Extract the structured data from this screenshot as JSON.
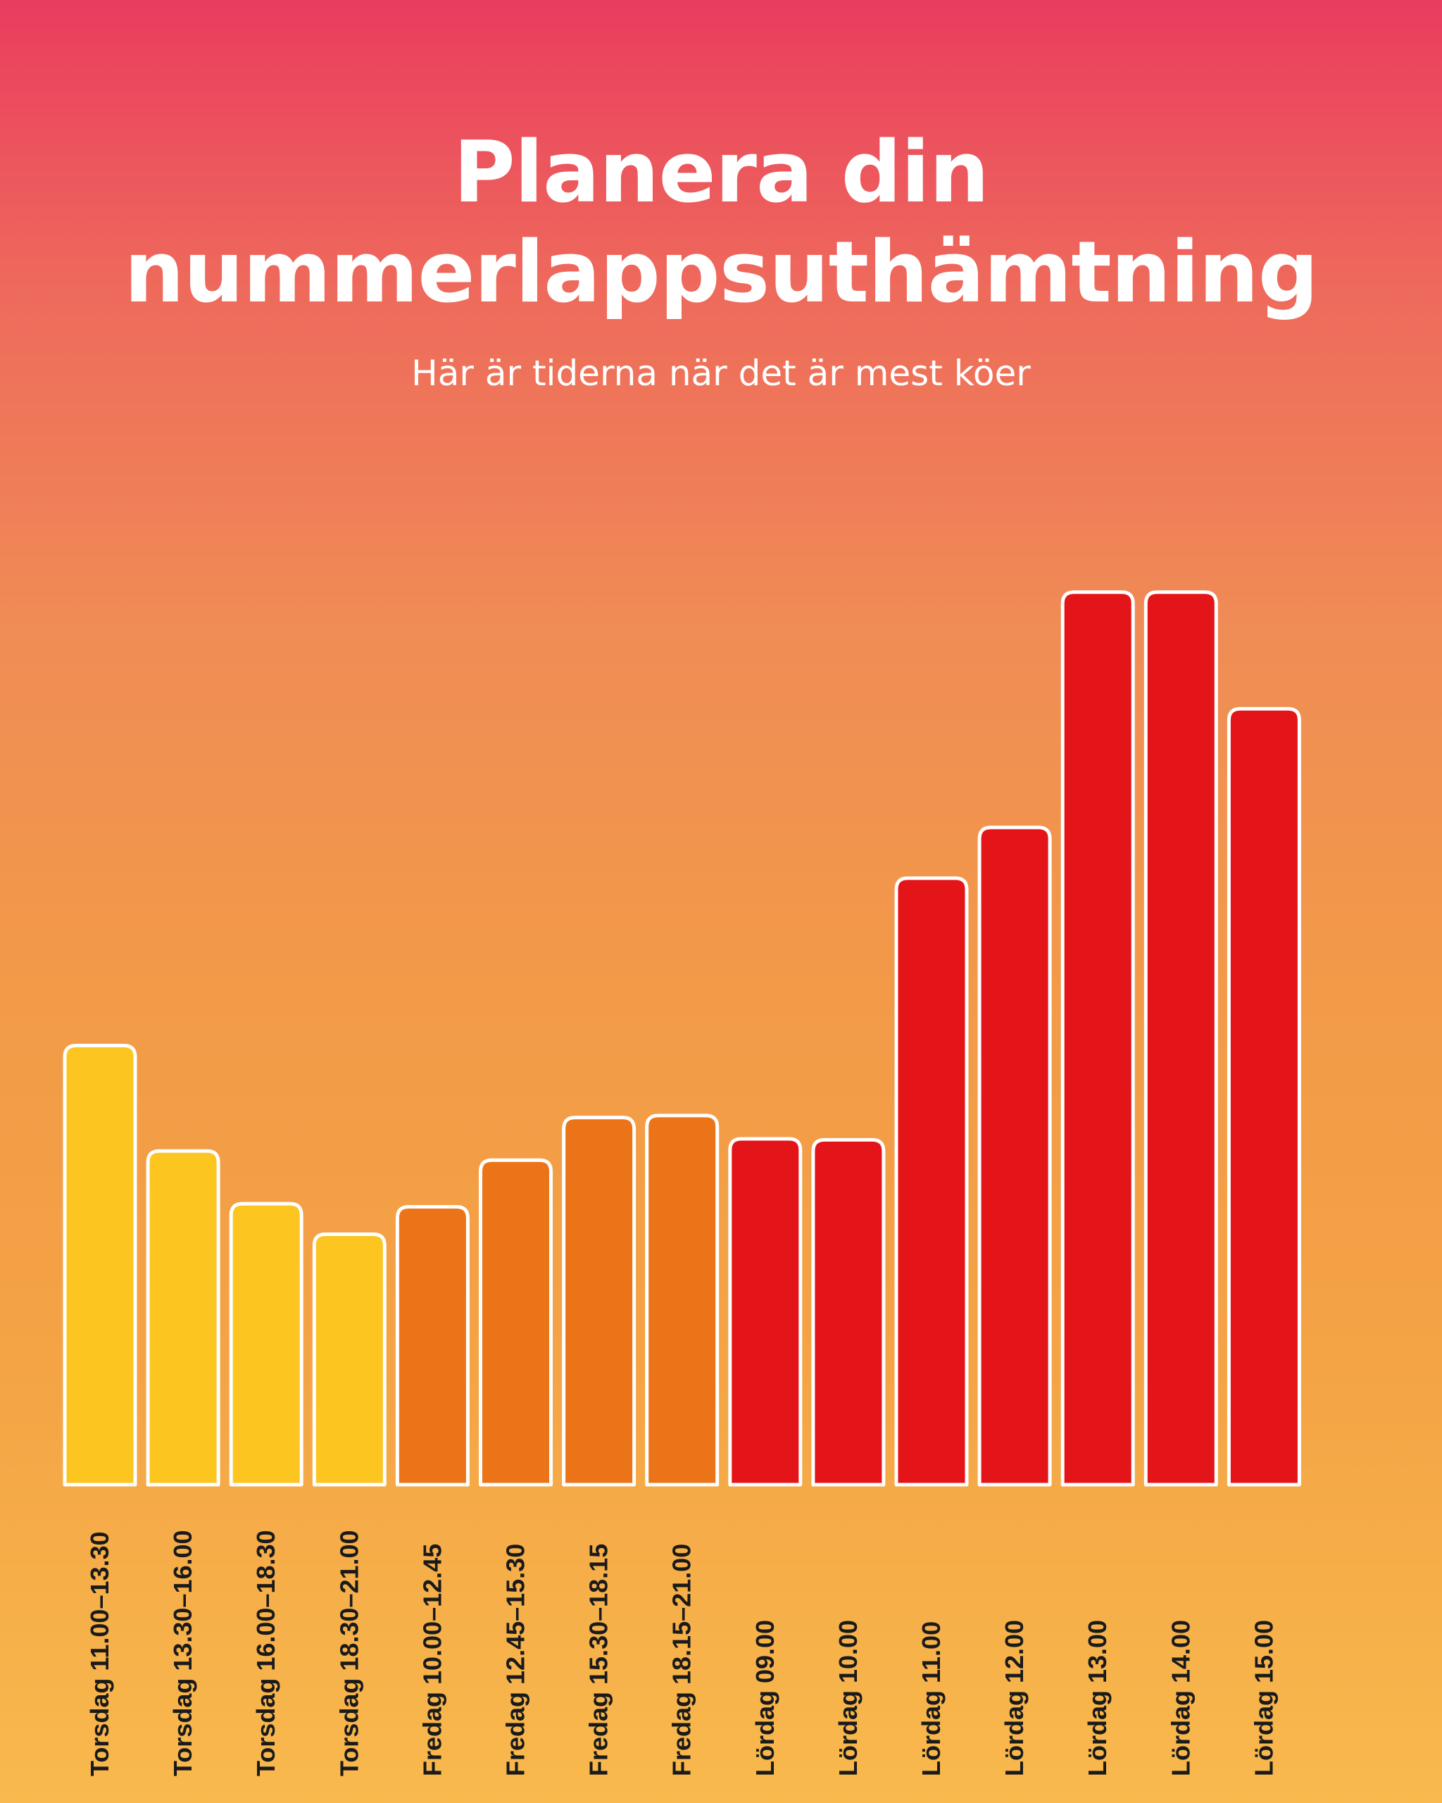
{
  "title": "Planera din nummerlappsuthämtning",
  "subtitle": "Här är tiderna när det är mest köer",
  "colors": {
    "thursday": "#FCC520",
    "friday": "#EC7418",
    "saturday": "#E31518",
    "bar_outline": "#FFFFFF",
    "label": "#1A1A1A"
  },
  "chart_data": {
    "type": "bar",
    "title": "Planera din nummerlappsuthämtning",
    "subtitle": "Här är tiderna när det är mest köer",
    "categories": [
      "Torsdag 11.00–13.30",
      "Torsdag 13.30–16.00",
      "Torsdag 16.00–18.30",
      "Torsdag 18.30–21.00",
      "Fredag 10.00–12.45",
      "Fredag 12.45–15.30",
      "Fredag 15.30–18.15",
      "Fredag 18.15–21.00",
      "Lördag 09.00",
      "Lördag 10.00",
      "Lördag 11.00",
      "Lördag 12.00",
      "Lördag 13.00",
      "Lördag 14.00",
      "Lördag 15.00"
    ],
    "values": [
      43.3,
      32.9,
      27.7,
      24.7,
      27.4,
      32.0,
      36.2,
      36.4,
      34.1,
      34.0,
      59.8,
      64.8,
      88.0,
      88.0,
      76.5
    ],
    "groups": [
      "thursday",
      "thursday",
      "thursday",
      "thursday",
      "friday",
      "friday",
      "friday",
      "friday",
      "saturday",
      "saturday",
      "saturday",
      "saturday",
      "saturday",
      "saturday",
      "saturday"
    ],
    "ylim": [
      0,
      100
    ],
    "xlabel": "",
    "ylabel": "",
    "grid": false,
    "legend": "none"
  }
}
